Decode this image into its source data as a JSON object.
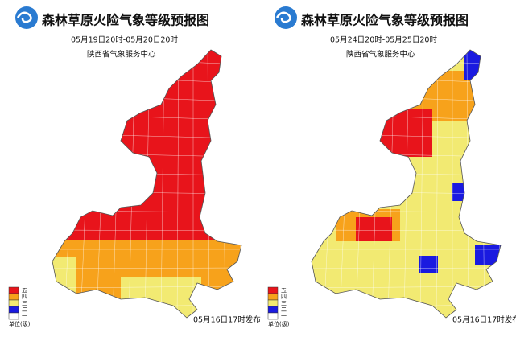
{
  "panels": [
    {
      "title": "森林草原火险气象等级预报图",
      "period": "05月19日20时-05月20日20时",
      "issuer": "陕西省气象服务中心",
      "issued": "05月16日17时发布"
    },
    {
      "title": "森林草原火险气象等级预报图",
      "period": "05月24日20时-05月25日20时",
      "issuer": "陕西省气象服务中心",
      "issued": "05月16日17时发布"
    }
  ],
  "legend": {
    "levels": [
      {
        "label": "五",
        "color": "#e8141b"
      },
      {
        "label": "四",
        "color": "#f7a21b"
      },
      {
        "label": "三",
        "color": "#f2ea72"
      },
      {
        "label": "二",
        "color": "#1a1ae0"
      },
      {
        "label": "一",
        "color": "#ffffff"
      }
    ],
    "unit": "单位(级)"
  }
}
